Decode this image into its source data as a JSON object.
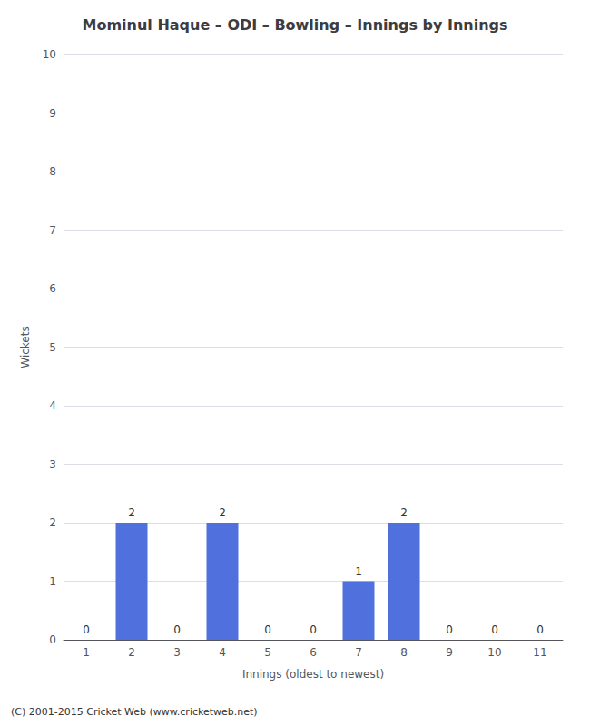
{
  "chart_data": {
    "type": "bar",
    "title": "Mominul Haque – ODI – Bowling – Innings by Innings",
    "xlabel": "Innings (oldest to newest)",
    "ylabel": "Wickets",
    "categories": [
      "1",
      "2",
      "3",
      "4",
      "5",
      "6",
      "7",
      "8",
      "9",
      "10",
      "11"
    ],
    "values": [
      0,
      2,
      0,
      2,
      0,
      0,
      1,
      2,
      0,
      0,
      0
    ],
    "ylim": [
      0,
      10
    ],
    "yticks": [
      0,
      1,
      2,
      3,
      4,
      5,
      6,
      7,
      8,
      9,
      10
    ],
    "grid": true,
    "data_labels": true,
    "footer": "(C) 2001-2015 Cricket Web (www.cricketweb.net)"
  }
}
